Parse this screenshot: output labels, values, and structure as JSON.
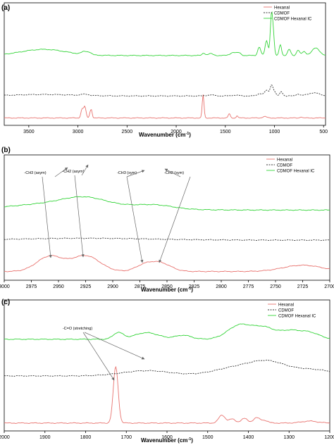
{
  "chart_data": [
    {
      "type": "line",
      "panel_label": "(a)",
      "xlabel": "Wavenumber (cm",
      "xlabel_sup": "-1",
      "xlabel_close": ")",
      "xlim": [
        3750,
        480
      ],
      "x_ticks": [
        3500,
        3000,
        2500,
        2000,
        1500,
        1000,
        500
      ],
      "legend": {
        "placement": "top-right",
        "entries": [
          "Hexanal",
          "CDMOF",
          "CDMOF Hexanal IC"
        ]
      },
      "annotations": [],
      "series": [
        {
          "name": "Hexanal",
          "color": "#e8736f",
          "style": "solid",
          "baseline": 0.06,
          "peaks": [
            [
              2958,
              0.07,
              12
            ],
            [
              2930,
              0.09,
              12
            ],
            [
              2872,
              0.05,
              10
            ],
            [
              2860,
              0.04,
              8
            ],
            [
              1726,
              0.19,
              9
            ],
            [
              1460,
              0.035,
              10
            ],
            [
              1380,
              0.02,
              8
            ],
            [
              1100,
              0.012,
              20
            ],
            [
              730,
              0.01,
              10
            ]
          ]
        },
        {
          "name": "CDMOF",
          "color": "#333333",
          "style": "dashed",
          "baseline": 0.24,
          "peaks": [
            [
              3350,
              0.012,
              300
            ],
            [
              2930,
              0.01,
              40
            ],
            [
              1650,
              0.008,
              40
            ],
            [
              1400,
              0.006,
              40
            ],
            [
              1150,
              0.02,
              25
            ],
            [
              1080,
              0.045,
              20
            ],
            [
              1030,
              0.085,
              15
            ],
            [
              1000,
              0.03,
              15
            ],
            [
              930,
              0.035,
              15
            ],
            [
              760,
              0.015,
              20
            ],
            [
              600,
              0.025,
              60
            ]
          ]
        },
        {
          "name": "CDMOF Hexanal IC",
          "color": "#35d43a",
          "style": "solid",
          "baseline": 0.57,
          "peaks": [
            [
              3350,
              0.05,
              230
            ],
            [
              2930,
              0.025,
              30
            ],
            [
              2880,
              0.015,
              20
            ],
            [
              1720,
              0.02,
              15
            ],
            [
              1650,
              0.015,
              25
            ],
            [
              1420,
              0.025,
              30
            ],
            [
              1360,
              0.02,
              20
            ],
            [
              1155,
              0.07,
              15
            ],
            [
              1080,
              0.12,
              15
            ],
            [
              1030,
              0.34,
              12
            ],
            [
              1010,
              0.13,
              10
            ],
            [
              940,
              0.09,
              12
            ],
            [
              850,
              0.05,
              15
            ],
            [
              760,
              0.045,
              15
            ],
            [
              700,
              0.03,
              20
            ],
            [
              580,
              0.06,
              40
            ]
          ]
        }
      ]
    },
    {
      "type": "line",
      "panel_label": "(b)",
      "xlabel": "Wavenumber (cm",
      "xlabel_sup": "-1",
      "xlabel_close": ")",
      "xlim": [
        3000,
        2700
      ],
      "x_ticks": [
        3000,
        2975,
        2950,
        2925,
        2900,
        2875,
        2850,
        2825,
        2800,
        2775,
        2750,
        2725,
        2700
      ],
      "legend": {
        "placement": "top-right",
        "entries": [
          "Hexanal",
          "CDMOF",
          "CDMOF Hexanal IC"
        ]
      },
      "annotations": [
        "-CH3 (asym)",
        "-CH2 (asym)",
        "-CH3 (sym)",
        "-CH2 (sym)"
      ],
      "series": [
        {
          "name": "Hexanal",
          "color": "#e8736f",
          "style": "solid",
          "baseline": 0.07,
          "peaks": [
            [
              2958,
              0.12,
              12
            ],
            [
              2925,
              0.125,
              13
            ],
            [
              2872,
              0.04,
              8
            ],
            [
              2857,
              0.07,
              10
            ],
            [
              2725,
              0.05,
              18
            ]
          ]
        },
        {
          "name": "CDMOF",
          "color": "#333333",
          "style": "dashed",
          "baseline": 0.32,
          "peaks": [
            [
              2925,
              0.015,
              60
            ]
          ]
        },
        {
          "name": "CDMOF Hexanal IC",
          "color": "#35d43a",
          "style": "solid",
          "baseline": 0.56,
          "peaks": [
            [
              2960,
              0.02,
              25
            ],
            [
              2925,
              0.07,
              20
            ],
            [
              2870,
              0.02,
              20
            ],
            [
              2857,
              0.015,
              15
            ],
            [
              2950,
              0.03,
              60
            ]
          ]
        }
      ]
    },
    {
      "type": "line",
      "panel_label": "(c)",
      "xlabel": "Wavenumber (cm",
      "xlabel_sup": "-1",
      "xlabel_close": ")",
      "xlim": [
        2000,
        1200
      ],
      "x_ticks": [
        2000,
        1900,
        1800,
        1700,
        1600,
        1500,
        1400,
        1300,
        1200
      ],
      "legend": {
        "placement": "top-right",
        "entries": [
          "Hexanal",
          "CDMOF",
          "CDMOF Hexanal IC"
        ]
      },
      "annotations": [
        "-C=O (stretching)"
      ],
      "series": [
        {
          "name": "Hexanal",
          "color": "#e8736f",
          "style": "solid",
          "baseline": 0.06,
          "peaks": [
            [
              1726,
              0.43,
              6
            ],
            [
              1465,
              0.06,
              8
            ],
            [
              1440,
              0.03,
              8
            ],
            [
              1410,
              0.035,
              8
            ],
            [
              1380,
              0.04,
              8
            ],
            [
              1360,
              0.02,
              8
            ],
            [
              1250,
              0.015,
              20
            ]
          ]
        },
        {
          "name": "CDMOF",
          "color": "#333333",
          "style": "dashed",
          "baseline": 0.42,
          "peaks": [
            [
              1650,
              0.04,
              60
            ],
            [
              1420,
              0.07,
              60
            ],
            [
              1350,
              0.07,
              40
            ],
            [
              1250,
              0.05,
              60
            ]
          ]
        },
        {
          "name": "CDMOF Hexanal IC",
          "color": "#35d43a",
          "style": "solid",
          "baseline": 0.7,
          "peaks": [
            [
              1720,
              0.05,
              12
            ],
            [
              1650,
              0.05,
              30
            ],
            [
              1560,
              0.03,
              20
            ],
            [
              1420,
              0.11,
              30
            ],
            [
              1360,
              0.08,
              25
            ],
            [
              1300,
              0.06,
              25
            ],
            [
              1250,
              0.05,
              25
            ]
          ]
        }
      ]
    }
  ]
}
